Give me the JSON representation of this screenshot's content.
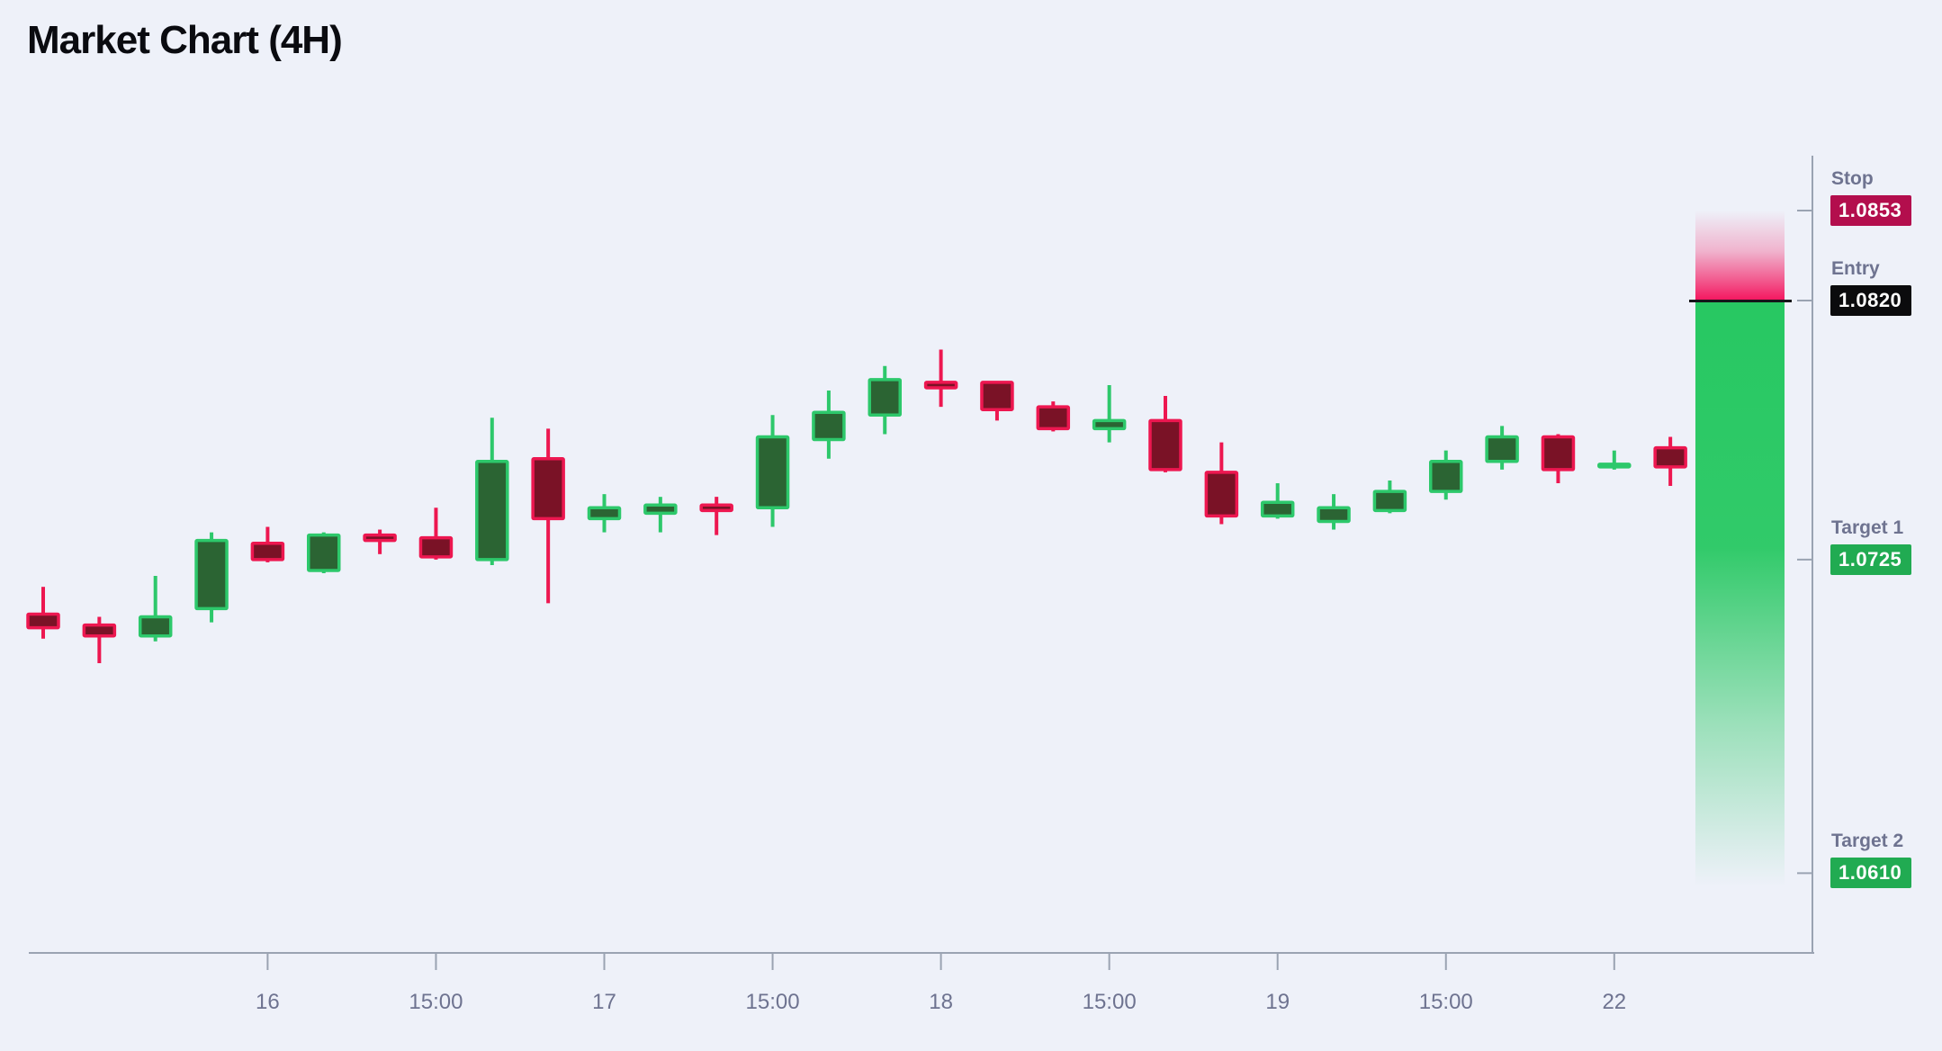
{
  "title": "Market Chart (4H)",
  "colors": {
    "background": "#eef1f9",
    "bull_border": "#2dc86b",
    "bull_fill": "#2b6433",
    "bear_border": "#ed1750",
    "bear_fill": "#7a1226",
    "axis_line": "#9aa3b2",
    "axis_text": "#6e7390",
    "stop_badge": "#b30e4d",
    "entry_badge": "#0b0b0d",
    "target_badge": "#21ab52",
    "risk_zone": "#f4155e",
    "reward_zone": "#27c862",
    "entry_line": "#16161a",
    "badge_text": "#ffffff",
    "title_color": "#0a0b10"
  },
  "levels": [
    {
      "id": "stop",
      "label": "Stop",
      "value": "1.0853",
      "price": 1.0853,
      "type": "stop"
    },
    {
      "id": "entry",
      "label": "Entry",
      "value": "1.0820",
      "price": 1.082,
      "type": "entry"
    },
    {
      "id": "target1",
      "label": "Target 1",
      "value": "1.0725",
      "price": 1.0725,
      "type": "target"
    },
    {
      "id": "target2",
      "label": "Target 2",
      "value": "1.0610",
      "price": 1.061,
      "type": "target"
    }
  ],
  "chart_data": {
    "type": "candlestick",
    "title": "Market Chart (4H)",
    "timeframe": "4H",
    "legend": "none",
    "grid": "off",
    "y_axis_labels": "none (only trade-level badges shown)",
    "price_range_visible": [
      1.061,
      1.0853
    ],
    "annotations": {
      "stop": 1.0853,
      "entry": 1.082,
      "target1": 1.0725,
      "target2": 1.061
    },
    "x_tick_labels": [
      "16",
      "15:00",
      "17",
      "15:00",
      "18",
      "15:00",
      "19",
      "15:00",
      "22"
    ],
    "x_tick_candle_indices": [
      4,
      7,
      10,
      13,
      16,
      19,
      22,
      25,
      28
    ],
    "candles": [
      {
        "o": 1.0705,
        "h": 1.0715,
        "l": 1.0696,
        "c": 1.07,
        "dir": "down"
      },
      {
        "o": 1.0701,
        "h": 1.0704,
        "l": 1.0687,
        "c": 1.0697,
        "dir": "down"
      },
      {
        "o": 1.0697,
        "h": 1.0719,
        "l": 1.0695,
        "c": 1.0704,
        "dir": "up"
      },
      {
        "o": 1.0707,
        "h": 1.0735,
        "l": 1.0702,
        "c": 1.0732,
        "dir": "up"
      },
      {
        "o": 1.0731,
        "h": 1.0737,
        "l": 1.0724,
        "c": 1.0725,
        "dir": "down"
      },
      {
        "o": 1.0721,
        "h": 1.0735,
        "l": 1.072,
        "c": 1.0734,
        "dir": "up"
      },
      {
        "o": 1.0734,
        "h": 1.0736,
        "l": 1.0727,
        "c": 1.0732,
        "dir": "down"
      },
      {
        "o": 1.0733,
        "h": 1.0744,
        "l": 1.0725,
        "c": 1.0726,
        "dir": "down"
      },
      {
        "o": 1.0725,
        "h": 1.0777,
        "l": 1.0723,
        "c": 1.0761,
        "dir": "up"
      },
      {
        "o": 1.0762,
        "h": 1.0773,
        "l": 1.0709,
        "c": 1.074,
        "dir": "down"
      },
      {
        "o": 1.074,
        "h": 1.0749,
        "l": 1.0735,
        "c": 1.0744,
        "dir": "up"
      },
      {
        "o": 1.0742,
        "h": 1.0748,
        "l": 1.0735,
        "c": 1.0745,
        "dir": "up"
      },
      {
        "o": 1.0745,
        "h": 1.0748,
        "l": 1.0734,
        "c": 1.0743,
        "dir": "down"
      },
      {
        "o": 1.0744,
        "h": 1.0778,
        "l": 1.0737,
        "c": 1.077,
        "dir": "up"
      },
      {
        "o": 1.0769,
        "h": 1.0787,
        "l": 1.0762,
        "c": 1.0779,
        "dir": "up"
      },
      {
        "o": 1.0778,
        "h": 1.0796,
        "l": 1.0771,
        "c": 1.0791,
        "dir": "up"
      },
      {
        "o": 1.079,
        "h": 1.0802,
        "l": 1.0781,
        "c": 1.0788,
        "dir": "down"
      },
      {
        "o": 1.079,
        "h": 1.079,
        "l": 1.0776,
        "c": 1.078,
        "dir": "down"
      },
      {
        "o": 1.0781,
        "h": 1.0783,
        "l": 1.0772,
        "c": 1.0773,
        "dir": "down"
      },
      {
        "o": 1.0773,
        "h": 1.0789,
        "l": 1.0768,
        "c": 1.0776,
        "dir": "up"
      },
      {
        "o": 1.0776,
        "h": 1.0785,
        "l": 1.0757,
        "c": 1.0758,
        "dir": "down"
      },
      {
        "o": 1.0757,
        "h": 1.0768,
        "l": 1.0738,
        "c": 1.0741,
        "dir": "down"
      },
      {
        "o": 1.0741,
        "h": 1.0753,
        "l": 1.074,
        "c": 1.0746,
        "dir": "up"
      },
      {
        "o": 1.0739,
        "h": 1.0749,
        "l": 1.0736,
        "c": 1.0744,
        "dir": "up"
      },
      {
        "o": 1.0743,
        "h": 1.0754,
        "l": 1.0742,
        "c": 1.075,
        "dir": "up"
      },
      {
        "o": 1.075,
        "h": 1.0765,
        "l": 1.0747,
        "c": 1.0761,
        "dir": "up"
      },
      {
        "o": 1.0761,
        "h": 1.0774,
        "l": 1.0758,
        "c": 1.077,
        "dir": "up"
      },
      {
        "o": 1.077,
        "h": 1.0771,
        "l": 1.0753,
        "c": 1.0758,
        "dir": "down"
      },
      {
        "o": 1.0759,
        "h": 1.0765,
        "l": 1.0758,
        "c": 1.076,
        "dir": "up"
      },
      {
        "o": 1.0766,
        "h": 1.077,
        "l": 1.0752,
        "c": 1.0759,
        "dir": "down"
      }
    ]
  }
}
